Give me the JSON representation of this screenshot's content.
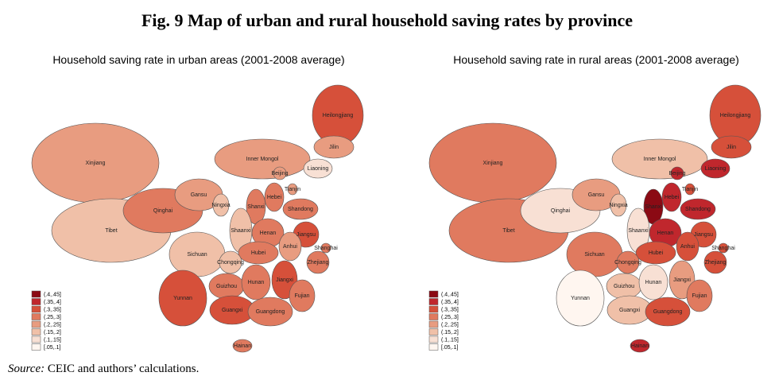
{
  "title": "Fig. 9 Map of  urban and rural household saving rates by province",
  "maps": [
    {
      "title": "Household saving rate in urban areas (2001-2008 average)",
      "legend": [
        {
          "label": "(.4,.45]",
          "color": "#8b0a14"
        },
        {
          "label": "(.35,.4]",
          "color": "#c0272d"
        },
        {
          "label": "(.3,.35]",
          "color": "#d6503a"
        },
        {
          "label": "(.25,.3]",
          "color": "#e07a5f"
        },
        {
          "label": "(.2,.25]",
          "color": "#e89c80"
        },
        {
          "label": "(.15,.2]",
          "color": "#f0c0a8"
        },
        {
          "label": "(.1,.15]",
          "color": "#f8e0d4"
        },
        {
          "label": "[.05,.1]",
          "color": "#fff6f0"
        }
      ],
      "provinces": [
        {
          "name": "Xinjiang",
          "color": "#e89c80"
        },
        {
          "name": "Tibet",
          "color": "#f0c0a8"
        },
        {
          "name": "Qinghai",
          "color": "#e07a5f"
        },
        {
          "name": "Gansu",
          "color": "#e89c80"
        },
        {
          "name": "Ningxia",
          "color": "#f0c0a8"
        },
        {
          "name": "Inner Mongol",
          "color": "#e89c80"
        },
        {
          "name": "Heilongjiang",
          "color": "#d6503a"
        },
        {
          "name": "Jilin",
          "color": "#e89c80"
        },
        {
          "name": "Liaoning",
          "color": "#f8e0d4"
        },
        {
          "name": "Beijing",
          "color": "#e89c80"
        },
        {
          "name": "Tianjin",
          "color": "#e89c80"
        },
        {
          "name": "Hebei",
          "color": "#e07a5f"
        },
        {
          "name": "Shanxi",
          "color": "#e07a5f"
        },
        {
          "name": "Shandong",
          "color": "#e07a5f"
        },
        {
          "name": "Shaanxi",
          "color": "#f0c0a8"
        },
        {
          "name": "Henan",
          "color": "#e07a5f"
        },
        {
          "name": "Jiangsu",
          "color": "#d6503a"
        },
        {
          "name": "Shanghai",
          "color": "#e07a5f"
        },
        {
          "name": "Anhui",
          "color": "#e89c80"
        },
        {
          "name": "Hubei",
          "color": "#e07a5f"
        },
        {
          "name": "Zhejiang",
          "color": "#e07a5f"
        },
        {
          "name": "Sichuan",
          "color": "#f0c0a8"
        },
        {
          "name": "Chongqing",
          "color": "#f0c0a8"
        },
        {
          "name": "Guizhou",
          "color": "#e07a5f"
        },
        {
          "name": "Hunan",
          "color": "#e07a5f"
        },
        {
          "name": "Jiangxi",
          "color": "#d6503a"
        },
        {
          "name": "Fujian",
          "color": "#e07a5f"
        },
        {
          "name": "Yunnan",
          "color": "#d6503a"
        },
        {
          "name": "Guangxi",
          "color": "#d6503a"
        },
        {
          "name": "Guangdong",
          "color": "#e07a5f"
        },
        {
          "name": "Hainan",
          "color": "#e07a5f"
        }
      ]
    },
    {
      "title": "Household saving rate in rural areas (2001-2008 average)",
      "legend": [
        {
          "label": "(.4,.45]",
          "color": "#8b0a14"
        },
        {
          "label": "(.35,.4]",
          "color": "#c0272d"
        },
        {
          "label": "(.3,.35]",
          "color": "#d6503a"
        },
        {
          "label": "(.25,.3]",
          "color": "#e07a5f"
        },
        {
          "label": "(.2,.25]",
          "color": "#e89c80"
        },
        {
          "label": "(.15,.2]",
          "color": "#f0c0a8"
        },
        {
          "label": "(.1,.15]",
          "color": "#f8e0d4"
        },
        {
          "label": "[.05,.1]",
          "color": "#fff6f0"
        }
      ],
      "provinces": [
        {
          "name": "Xinjiang",
          "color": "#e07a5f"
        },
        {
          "name": "Tibet",
          "color": "#e07a5f"
        },
        {
          "name": "Qinghai",
          "color": "#f8e0d4"
        },
        {
          "name": "Gansu",
          "color": "#e89c80"
        },
        {
          "name": "Ningxia",
          "color": "#f0c0a8"
        },
        {
          "name": "Inner Mongol",
          "color": "#f0c0a8"
        },
        {
          "name": "Heilongjiang",
          "color": "#d6503a"
        },
        {
          "name": "Jilin",
          "color": "#d6503a"
        },
        {
          "name": "Liaoning",
          "color": "#c0272d"
        },
        {
          "name": "Beijing",
          "color": "#c0272d"
        },
        {
          "name": "Tianjin",
          "color": "#d6503a"
        },
        {
          "name": "Hebei",
          "color": "#c0272d"
        },
        {
          "name": "Shanxi",
          "color": "#8b0a14"
        },
        {
          "name": "Shandong",
          "color": "#c0272d"
        },
        {
          "name": "Shaanxi",
          "color": "#f8e0d4"
        },
        {
          "name": "Henan",
          "color": "#c0272d"
        },
        {
          "name": "Jiangsu",
          "color": "#d6503a"
        },
        {
          "name": "Shanghai",
          "color": "#d6503a"
        },
        {
          "name": "Anhui",
          "color": "#d6503a"
        },
        {
          "name": "Hubei",
          "color": "#d6503a"
        },
        {
          "name": "Zhejiang",
          "color": "#d6503a"
        },
        {
          "name": "Sichuan",
          "color": "#e07a5f"
        },
        {
          "name": "Chongqing",
          "color": "#e07a5f"
        },
        {
          "name": "Guizhou",
          "color": "#f0c0a8"
        },
        {
          "name": "Hunan",
          "color": "#f8e0d4"
        },
        {
          "name": "Jiangxi",
          "color": "#e89c80"
        },
        {
          "name": "Fujian",
          "color": "#e07a5f"
        },
        {
          "name": "Yunnan",
          "color": "#fff6f0"
        },
        {
          "name": "Guangxi",
          "color": "#f0c0a8"
        },
        {
          "name": "Guangdong",
          "color": "#d6503a"
        },
        {
          "name": "Hainan",
          "color": "#c0272d"
        }
      ]
    }
  ],
  "source": {
    "label": "Source:",
    "text": "CEIC and authors’ calculations."
  }
}
